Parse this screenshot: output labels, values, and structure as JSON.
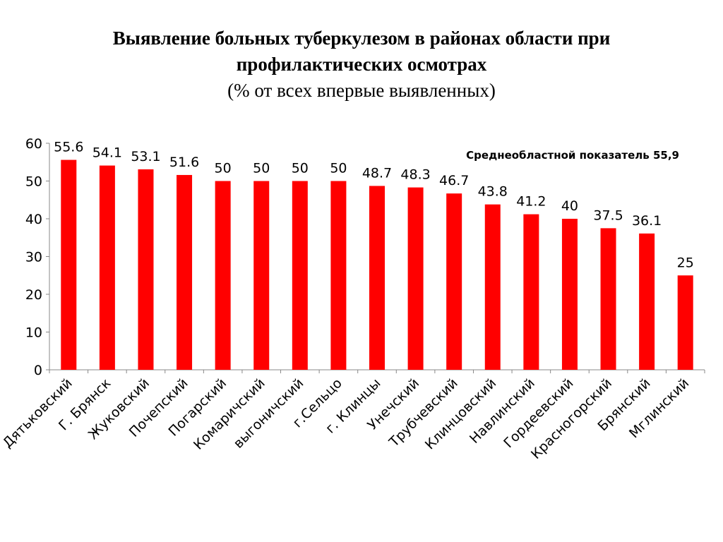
{
  "title_line1": "Выявление больных туберкулезом в районах области при",
  "title_line2": "профилактических осмотрах",
  "subtitle": "(% от всех впервые выявленных)",
  "colors": {
    "bar": "#ff0000",
    "axis": "#888888"
  },
  "chart_data": {
    "type": "bar",
    "title": "Выявление больных туберкулезом в районах области при профилактических осмотрах",
    "subtitle": "(% от всех впервые выявленных)",
    "categories": [
      "Дятьковский",
      "Г. Брянск",
      "Жуковский",
      "Почепский",
      "Погарский",
      "Комаричский",
      "выгоничский",
      "г.Сельцо",
      "г. Клинцы",
      "Унечский",
      "Трубчевский",
      "Клинцовский",
      "Навлинский",
      "Гордеевский",
      "Красногорский",
      "Брянский",
      "Мглинский"
    ],
    "values": [
      55.6,
      54.1,
      53.1,
      51.6,
      50,
      50,
      50,
      50,
      48.7,
      48.3,
      46.7,
      43.8,
      41.2,
      40,
      37.5,
      36.1,
      25
    ],
    "value_labels": [
      "55.6",
      "54.1",
      "53.1",
      "51.6",
      "50",
      "50",
      "50",
      "50",
      "48.7",
      "48.3",
      "46.7",
      "43.8",
      "41.2",
      "40",
      "37.5",
      "36.1",
      "25"
    ],
    "ylim": [
      0,
      60
    ],
    "yticks": [
      0,
      10,
      20,
      30,
      40,
      50,
      60
    ],
    "xlabel": "",
    "ylabel": "",
    "grid": false,
    "legend": "none",
    "annotation": "Среднеобластной показатель 55,9"
  }
}
